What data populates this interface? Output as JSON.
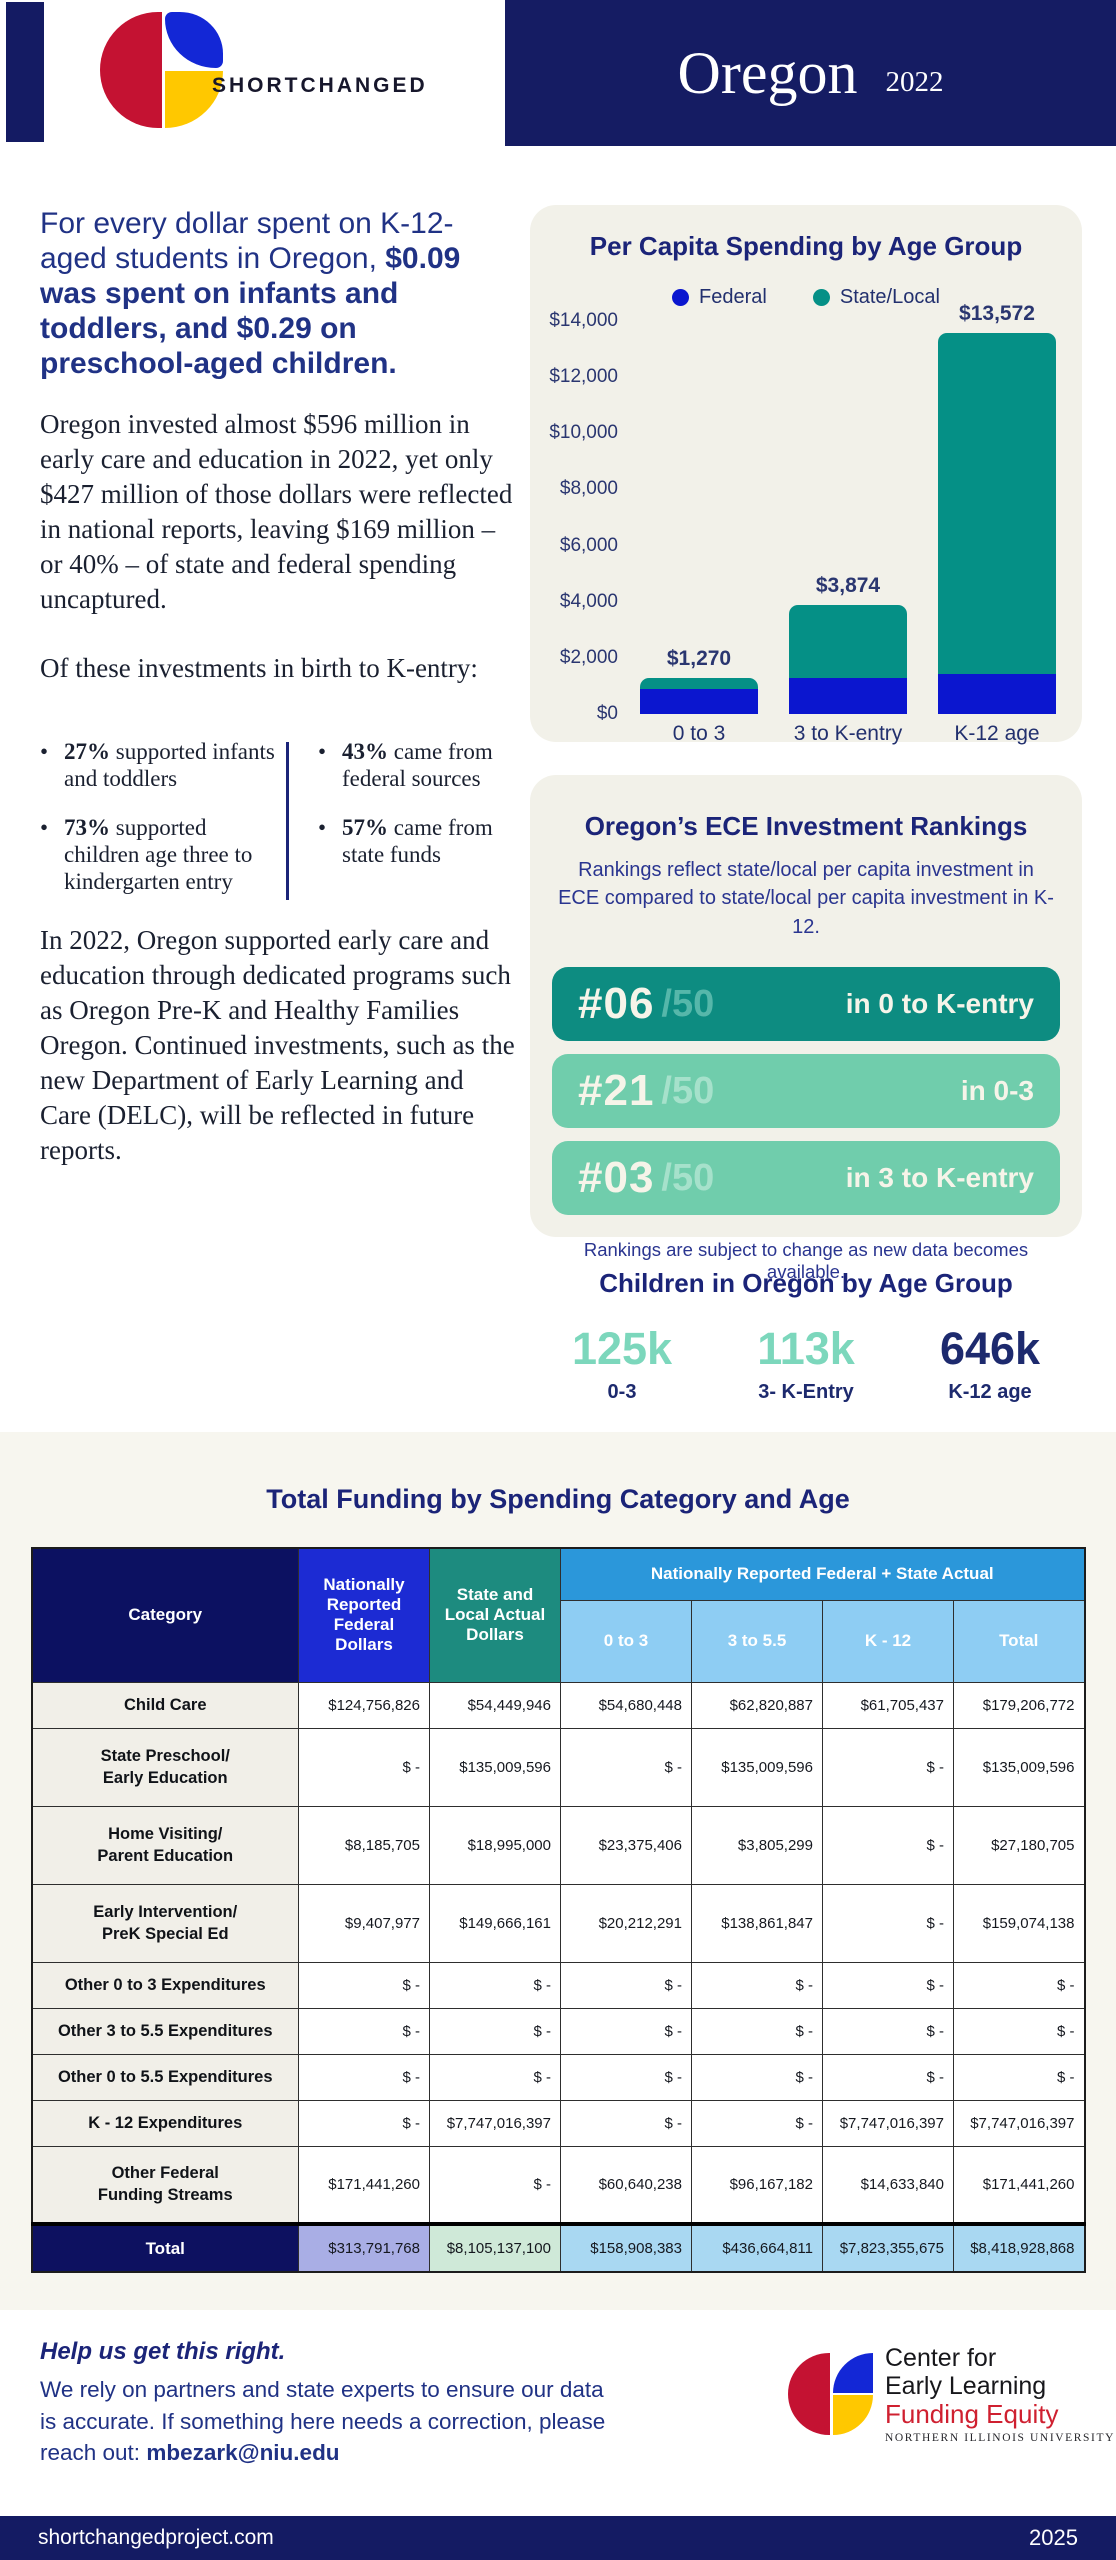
{
  "header": {
    "brand": "SHORTCHANGED",
    "state": "Oregon",
    "year": "2022"
  },
  "lead": {
    "normal": "For every dollar spent on K-12-aged students in Oregon, ",
    "bold": "$0.09 was spent on infants and toddlers, and $0.29 on preschool-aged children."
  },
  "paragraphs": {
    "invest": "Oregon invested almost $596 million in early care and education in 2022, yet only $427 million of those dollars were reflected in national reports, leaving $169 million – or 40% – of state and federal spending uncaptured.",
    "of_these": "Of these investments in birth to K-entry:",
    "support": "In 2022, Oregon supported early care and education through dedicated programs such as Oregon Pre-K and Healthy Families Oregon. Continued investments, such as the new Department of Early Learning and Care (DELC), will be reflected in future reports."
  },
  "bullets": {
    "left": [
      {
        "pct": "27%",
        "rest": " supported infants and toddlers"
      },
      {
        "pct": "73%",
        "rest": " supported children age three to kindergarten entry"
      }
    ],
    "right": [
      {
        "pct": "43%",
        "rest": " came from federal sources"
      },
      {
        "pct": "57%",
        "rest": " came from state funds"
      }
    ]
  },
  "chart_data": {
    "type": "bar",
    "stacked": true,
    "title": "Per Capita Spending by Age Group",
    "categories": [
      "0 to 3",
      "3 to K-entry",
      "K-12 age"
    ],
    "series": [
      {
        "name": "Federal",
        "color": "#0b16cf",
        "values": [
          890,
          1300,
          1440
        ]
      },
      {
        "name": "State/Local",
        "color": "#059086",
        "values": [
          380,
          2574,
          12132
        ]
      }
    ],
    "totals_labels": [
      "$1,270",
      "$3,874",
      "$13,572"
    ],
    "total_values": [
      1270,
      3874,
      13572
    ],
    "y_ticks": [
      "$14,000",
      "$12,000",
      "$10,000",
      "$8,000",
      "$6,000",
      "$4,000",
      "$2,000",
      "$0"
    ],
    "ylim": [
      0,
      14000
    ],
    "grid": false,
    "legend_position": "top"
  },
  "rankings": {
    "title": "Oregon’s ECE Investment Rankings",
    "subtitle": "Rankings reflect state/local per capita investment in ECE compared to state/local per capita investment in K-12.",
    "pills": [
      {
        "rank": "#06",
        "denom": "/50",
        "label": "in 0 to K-entry",
        "style": "dark"
      },
      {
        "rank": "#21",
        "denom": "/50",
        "label": "in 0-3",
        "style": "light"
      },
      {
        "rank": "#03",
        "denom": "/50",
        "label": "in 3 to K-entry",
        "style": "light"
      }
    ],
    "note": "Rankings are subject to change as new data becomes available."
  },
  "children_stats": {
    "title": "Children in Oregon by Age Group",
    "stats": [
      {
        "value": "125k",
        "label": "0-3",
        "accent": "mint"
      },
      {
        "value": "113k",
        "label": "3- K-Entry",
        "accent": "mint"
      },
      {
        "value": "646k",
        "label": "K-12 age",
        "accent": "navy"
      }
    ]
  },
  "table": {
    "title": "Total Funding by Spending Category and Age",
    "col_category": "Category",
    "col_federal": "Nationally Reported Federal Dollars",
    "col_state": "State and Local Actual Dollars",
    "group_header": "Nationally Reported Federal + State Actual",
    "sub_columns": [
      "0 to 3",
      "3 to 5.5",
      "K - 12",
      "Total"
    ],
    "rows": [
      {
        "category": [
          "Child Care"
        ],
        "tall": false,
        "values": [
          "$124,756,826",
          "$54,449,946",
          "$54,680,448",
          "$62,820,887",
          "$61,705,437",
          "$179,206,772"
        ]
      },
      {
        "category": [
          "State Preschool/",
          "Early Education"
        ],
        "tall": true,
        "values": [
          "$ -",
          "$135,009,596",
          "$ -",
          "$135,009,596",
          "$ -",
          "$135,009,596"
        ]
      },
      {
        "category": [
          "Home Visiting/",
          "Parent Education"
        ],
        "tall": true,
        "values": [
          "$8,185,705",
          "$18,995,000",
          "$23,375,406",
          "$3,805,299",
          "$ -",
          "$27,180,705"
        ]
      },
      {
        "category": [
          "Early Intervention/",
          "PreK Special Ed"
        ],
        "tall": true,
        "values": [
          "$9,407,977",
          "$149,666,161",
          "$20,212,291",
          "$138,861,847",
          "$ -",
          "$159,074,138"
        ]
      },
      {
        "category": [
          "Other 0 to 3 Expenditures"
        ],
        "tall": false,
        "values": [
          "$ -",
          "$ -",
          "$ -",
          "$ -",
          "$ -",
          "$ -"
        ]
      },
      {
        "category": [
          "Other 3 to 5.5 Expenditures"
        ],
        "tall": false,
        "values": [
          "$ -",
          "$ -",
          "$ -",
          "$ -",
          "$ -",
          "$ -"
        ]
      },
      {
        "category": [
          "Other 0 to 5.5 Expenditures"
        ],
        "tall": false,
        "values": [
          "$ -",
          "$ -",
          "$ -",
          "$ -",
          "$ -",
          "$ -"
        ]
      },
      {
        "category": [
          "K - 12 Expenditures"
        ],
        "tall": false,
        "values": [
          "$ -",
          "$7,747,016,397",
          "$ -",
          "$ -",
          "$7,747,016,397",
          "$7,747,016,397"
        ]
      },
      {
        "category": [
          "Other Federal",
          "Funding Streams"
        ],
        "tall": true,
        "values": [
          "$171,441,260",
          "$ -",
          "$60,640,238",
          "$96,167,182",
          "$14,633,840",
          "$171,441,260"
        ]
      }
    ],
    "total": {
      "label": "Total",
      "values": [
        "$313,791,768",
        "$8,105,137,100",
        "$158,908,383",
        "$436,664,811",
        "$7,823,355,675",
        "$8,418,928,868"
      ]
    }
  },
  "footer": {
    "help_title": "Help us get this right.",
    "help_body": "We rely on partners and state experts to ensure our data is accurate. If something here needs a correction, please reach out: ",
    "email": "mbezark@niu.edu",
    "logo": {
      "line1": "Center for",
      "line2": "Early Learning",
      "line3": "Funding Equity",
      "line4": "NORTHERN ILLINOIS UNIVERSITY"
    }
  },
  "bottom_bar": {
    "site": "shortchangedproject.com",
    "year": "2025"
  },
  "colors": {
    "navy": "#141b63",
    "federal_blue": "#0b16cf",
    "teal": "#059086",
    "pill_dark": "#0d8c81",
    "pill_light": "#70cdac",
    "mint": "#7cd7bc",
    "card_bg": "#f2f1e9",
    "band_bg": "#f7f6ef",
    "brand_red": "#c41232",
    "brand_blue": "#1327d6",
    "brand_yellow": "#ffc800",
    "total_fed": "#a9aee5",
    "total_state": "#cfe9d8",
    "total_blue": "#a9d8f2"
  }
}
